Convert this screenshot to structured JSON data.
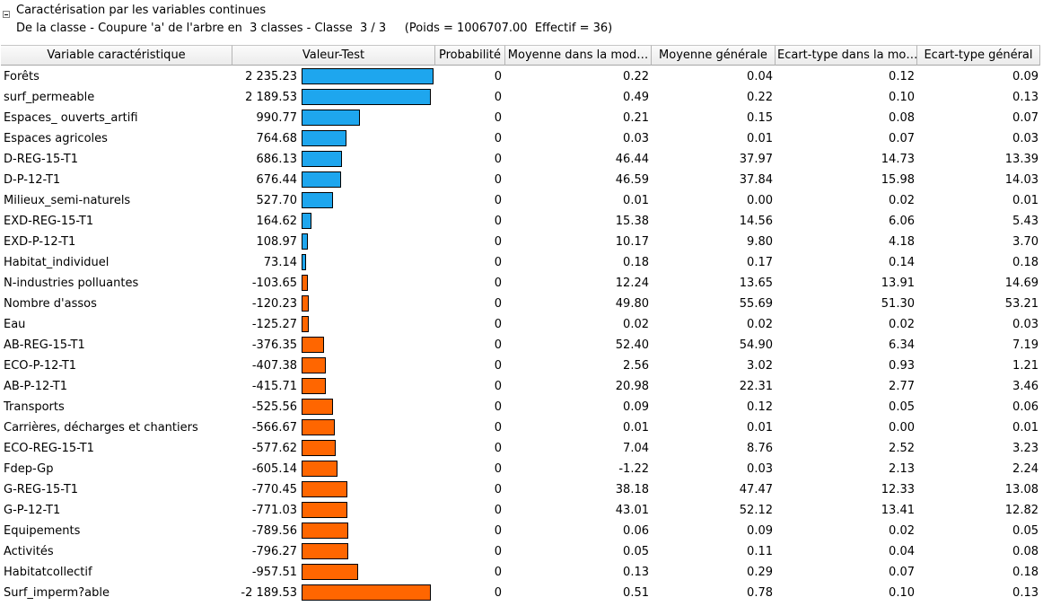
{
  "header": {
    "title": "Caractérisation par les variables continues",
    "subtitle": "De la classe - Coupure 'a' de l'arbre en  3 classes - Classe  3 / 3     (Poids = 1006707.00  Effectif = 36)"
  },
  "columns": [
    "Variable caractéristique",
    "Valeur-Test",
    "Probabilité",
    "Moyenne dans la mod…",
    "Moyenne générale",
    "Ecart-type dans la mo…",
    "Ecart-type général"
  ],
  "colors": {
    "positive": "#1ea6ee",
    "negative": "#ff6600"
  },
  "max_abs_value": 2235.23,
  "rows": [
    {
      "name": "Forêts",
      "vt_label": "2 235.23",
      "vt": 2235.23,
      "prob": "0",
      "m1": "0.22",
      "m2": "0.04",
      "s1": "0.12",
      "s2": "0.09"
    },
    {
      "name": "surf_permeable",
      "vt_label": "2 189.53",
      "vt": 2189.53,
      "prob": "0",
      "m1": "0.49",
      "m2": "0.22",
      "s1": "0.10",
      "s2": "0.13"
    },
    {
      "name": "Espaces_ ouverts_artifi",
      "vt_label": "990.77",
      "vt": 990.77,
      "prob": "0",
      "m1": "0.21",
      "m2": "0.15",
      "s1": "0.08",
      "s2": "0.07"
    },
    {
      "name": "Espaces agricoles",
      "vt_label": "764.68",
      "vt": 764.68,
      "prob": "0",
      "m1": "0.03",
      "m2": "0.01",
      "s1": "0.07",
      "s2": "0.03"
    },
    {
      "name": "D-REG-15-T1",
      "vt_label": "686.13",
      "vt": 686.13,
      "prob": "0",
      "m1": "46.44",
      "m2": "37.97",
      "s1": "14.73",
      "s2": "13.39"
    },
    {
      "name": "D-P-12-T1",
      "vt_label": "676.44",
      "vt": 676.44,
      "prob": "0",
      "m1": "46.59",
      "m2": "37.84",
      "s1": "15.98",
      "s2": "14.03"
    },
    {
      "name": "Milieux_semi-naturels",
      "vt_label": "527.70",
      "vt": 527.7,
      "prob": "0",
      "m1": "0.01",
      "m2": "0.00",
      "s1": "0.02",
      "s2": "0.01"
    },
    {
      "name": "EXD-REG-15-T1",
      "vt_label": "164.62",
      "vt": 164.62,
      "prob": "0",
      "m1": "15.38",
      "m2": "14.56",
      "s1": "6.06",
      "s2": "5.43"
    },
    {
      "name": "EXD-P-12-T1",
      "vt_label": "108.97",
      "vt": 108.97,
      "prob": "0",
      "m1": "10.17",
      "m2": "9.80",
      "s1": "4.18",
      "s2": "3.70"
    },
    {
      "name": "Habitat_individuel",
      "vt_label": "73.14",
      "vt": 73.14,
      "prob": "0",
      "m1": "0.18",
      "m2": "0.17",
      "s1": "0.14",
      "s2": "0.18"
    },
    {
      "name": "N-industries polluantes",
      "vt_label": "-103.65",
      "vt": -103.65,
      "prob": "0",
      "m1": "12.24",
      "m2": "13.65",
      "s1": "13.91",
      "s2": "14.69"
    },
    {
      "name": "Nombre d'assos",
      "vt_label": "-120.23",
      "vt": -120.23,
      "prob": "0",
      "m1": "49.80",
      "m2": "55.69",
      "s1": "51.30",
      "s2": "53.21"
    },
    {
      "name": "Eau",
      "vt_label": "-125.27",
      "vt": -125.27,
      "prob": "0",
      "m1": "0.02",
      "m2": "0.02",
      "s1": "0.02",
      "s2": "0.03"
    },
    {
      "name": "AB-REG-15-T1",
      "vt_label": "-376.35",
      "vt": -376.35,
      "prob": "0",
      "m1": "52.40",
      "m2": "54.90",
      "s1": "6.34",
      "s2": "7.19"
    },
    {
      "name": "ECO-P-12-T1",
      "vt_label": "-407.38",
      "vt": -407.38,
      "prob": "0",
      "m1": "2.56",
      "m2": "3.02",
      "s1": "0.93",
      "s2": "1.21"
    },
    {
      "name": "AB-P-12-T1",
      "vt_label": "-415.71",
      "vt": -415.71,
      "prob": "0",
      "m1": "20.98",
      "m2": "22.31",
      "s1": "2.77",
      "s2": "3.46"
    },
    {
      "name": "Transports",
      "vt_label": "-525.56",
      "vt": -525.56,
      "prob": "0",
      "m1": "0.09",
      "m2": "0.12",
      "s1": "0.05",
      "s2": "0.06"
    },
    {
      "name": "Carrières, décharges et chantiers",
      "vt_label": "-566.67",
      "vt": -566.67,
      "prob": "0",
      "m1": "0.01",
      "m2": "0.01",
      "s1": "0.00",
      "s2": "0.01"
    },
    {
      "name": "ECO-REG-15-T1",
      "vt_label": "-577.62",
      "vt": -577.62,
      "prob": "0",
      "m1": "7.04",
      "m2": "8.76",
      "s1": "2.52",
      "s2": "3.23"
    },
    {
      "name": "Fdep-Gp",
      "vt_label": "-605.14",
      "vt": -605.14,
      "prob": "0",
      "m1": "-1.22",
      "m2": "0.03",
      "s1": "2.13",
      "s2": "2.24"
    },
    {
      "name": "G-REG-15-T1",
      "vt_label": "-770.45",
      "vt": -770.45,
      "prob": "0",
      "m1": "38.18",
      "m2": "47.47",
      "s1": "12.33",
      "s2": "13.08"
    },
    {
      "name": "G-P-12-T1",
      "vt_label": "-771.03",
      "vt": -771.03,
      "prob": "0",
      "m1": "43.01",
      "m2": "52.12",
      "s1": "13.41",
      "s2": "12.82"
    },
    {
      "name": "Equipements",
      "vt_label": "-789.56",
      "vt": -789.56,
      "prob": "0",
      "m1": "0.06",
      "m2": "0.09",
      "s1": "0.02",
      "s2": "0.05"
    },
    {
      "name": "Activités",
      "vt_label": "-796.27",
      "vt": -796.27,
      "prob": "0",
      "m1": "0.05",
      "m2": "0.11",
      "s1": "0.04",
      "s2": "0.08"
    },
    {
      "name": "Habitatcollectif",
      "vt_label": "-957.51",
      "vt": -957.51,
      "prob": "0",
      "m1": "0.13",
      "m2": "0.29",
      "s1": "0.07",
      "s2": "0.18"
    },
    {
      "name": "Surf_imperm?able",
      "vt_label": "-2 189.53",
      "vt": -2189.53,
      "prob": "0",
      "m1": "0.51",
      "m2": "0.78",
      "s1": "0.10",
      "s2": "0.13"
    }
  ]
}
